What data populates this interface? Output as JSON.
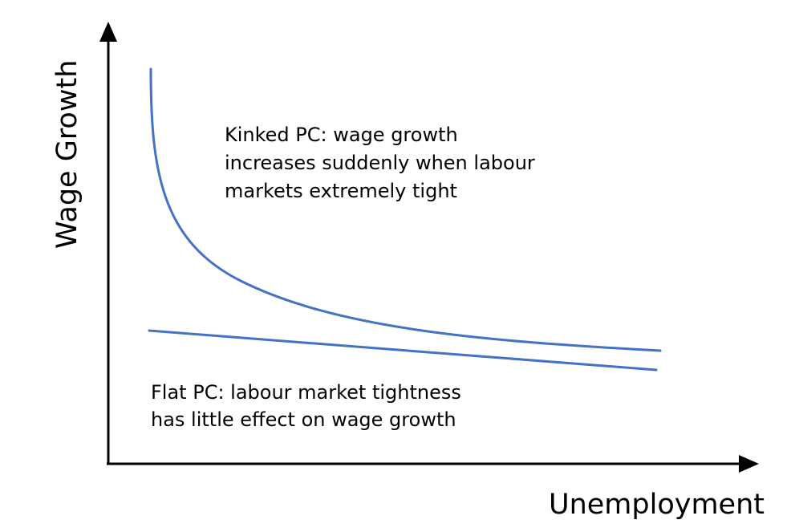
{
  "diagram": {
    "axes": {
      "y_label": "Wage Growth",
      "x_label": "Unemployment"
    },
    "curves": [
      {
        "name": "Kinked PC",
        "annotation": [
          "Kinked PC: wage growth",
          "increases suddenly when labour",
          "markets extremely tight"
        ]
      },
      {
        "name": "Flat PC",
        "annotation": [
          "Flat PC: labour market tightness",
          "has little effect on wage growth"
        ]
      }
    ],
    "colors": {
      "curve": "#4472C4",
      "axis": "#000000"
    }
  }
}
